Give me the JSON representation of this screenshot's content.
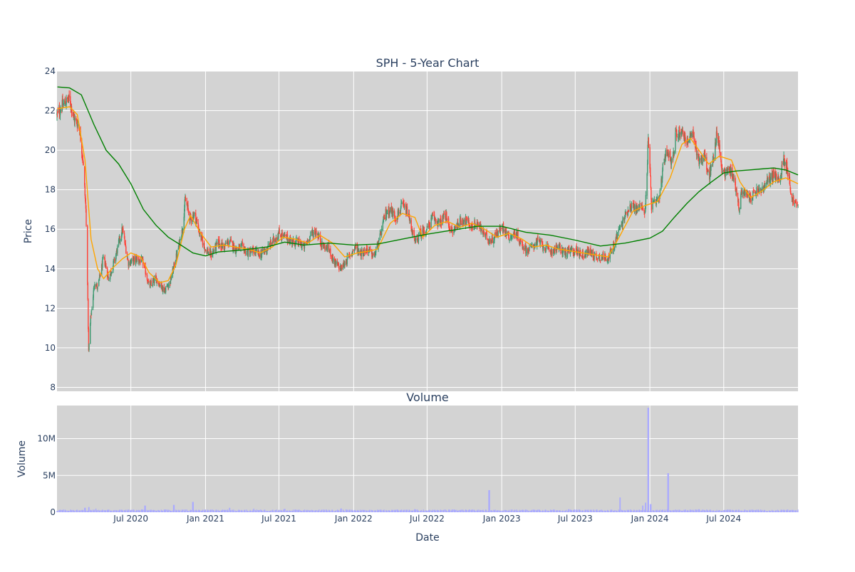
{
  "chart_data": [
    {
      "type": "candlestick",
      "title": "SPH - 5-Year Chart",
      "ylabel": "Price",
      "ylim": [
        7.8,
        24
      ],
      "yticks": [
        8,
        10,
        12,
        14,
        16,
        18,
        20,
        22,
        24
      ],
      "xlim": [
        "2020-01-01",
        "2024-12-31"
      ],
      "grid": true,
      "colors": {
        "increasing": "#3d9970",
        "decreasing": "#ff4136",
        "ma_short": "#ffa500",
        "ma_long": "#008000",
        "plot_bg": "#d3d3d3"
      },
      "price_anchors": [
        [
          "2020-01-02",
          21.8
        ],
        [
          "2020-01-15",
          22.3
        ],
        [
          "2020-02-01",
          22.6
        ],
        [
          "2020-02-12",
          21.6
        ],
        [
          "2020-02-25",
          21.2
        ],
        [
          "2020-03-05",
          19.5
        ],
        [
          "2020-03-12",
          17.0
        ],
        [
          "2020-03-16",
          13.5
        ],
        [
          "2020-03-19",
          9.8
        ],
        [
          "2020-03-24",
          11.5
        ],
        [
          "2020-04-03",
          13.4
        ],
        [
          "2020-04-10",
          13.0
        ],
        [
          "2020-04-25",
          14.6
        ],
        [
          "2020-05-07",
          13.5
        ],
        [
          "2020-05-20",
          14.3
        ],
        [
          "2020-06-05",
          15.6
        ],
        [
          "2020-06-10",
          16.0
        ],
        [
          "2020-06-25",
          14.3
        ],
        [
          "2020-07-15",
          14.5
        ],
        [
          "2020-08-01",
          14.3
        ],
        [
          "2020-08-15",
          13.1
        ],
        [
          "2020-09-01",
          13.5
        ],
        [
          "2020-09-22",
          12.9
        ],
        [
          "2020-10-05",
          13.3
        ],
        [
          "2020-10-20",
          14.5
        ],
        [
          "2020-11-05",
          16.0
        ],
        [
          "2020-11-12",
          17.5
        ],
        [
          "2020-11-25",
          16.5
        ],
        [
          "2020-12-05",
          16.8
        ],
        [
          "2020-12-20",
          15.6
        ],
        [
          "2021-01-01",
          15.0
        ],
        [
          "2021-01-15",
          14.7
        ],
        [
          "2021-02-01",
          15.3
        ],
        [
          "2021-02-15",
          15.1
        ],
        [
          "2021-03-01",
          15.4
        ],
        [
          "2021-03-15",
          15.0
        ],
        [
          "2021-04-01",
          15.1
        ],
        [
          "2021-04-15",
          14.8
        ],
        [
          "2021-05-01",
          14.9
        ],
        [
          "2021-05-15",
          14.7
        ],
        [
          "2021-06-01",
          15.0
        ],
        [
          "2021-06-20",
          15.5
        ],
        [
          "2021-07-01",
          15.8
        ],
        [
          "2021-07-15",
          15.6
        ],
        [
          "2021-08-01",
          15.4
        ],
        [
          "2021-08-20",
          15.3
        ],
        [
          "2021-09-01",
          15.1
        ],
        [
          "2021-09-20",
          15.8
        ],
        [
          "2021-10-01",
          15.9
        ],
        [
          "2021-10-15",
          15.2
        ],
        [
          "2021-11-01",
          15.0
        ],
        [
          "2021-11-15",
          14.3
        ],
        [
          "2021-12-01",
          14.0
        ],
        [
          "2021-12-20",
          14.6
        ],
        [
          "2022-01-05",
          15.1
        ],
        [
          "2022-01-20",
          14.8
        ],
        [
          "2022-02-05",
          15.0
        ],
        [
          "2022-02-20",
          14.6
        ],
        [
          "2022-03-05",
          15.4
        ],
        [
          "2022-03-20",
          16.8
        ],
        [
          "2022-04-01",
          17.0
        ],
        [
          "2022-04-15",
          16.6
        ],
        [
          "2022-05-01",
          17.2
        ],
        [
          "2022-05-15",
          16.8
        ],
        [
          "2022-06-01",
          15.3
        ],
        [
          "2022-06-15",
          15.8
        ],
        [
          "2022-07-01",
          16.0
        ],
        [
          "2022-07-15",
          16.6
        ],
        [
          "2022-08-01",
          16.3
        ],
        [
          "2022-08-15",
          16.7
        ],
        [
          "2022-09-01",
          15.8
        ],
        [
          "2022-09-15",
          16.3
        ],
        [
          "2022-10-01",
          16.5
        ],
        [
          "2022-10-20",
          16.1
        ],
        [
          "2022-11-01",
          16.3
        ],
        [
          "2022-11-20",
          15.7
        ],
        [
          "2022-12-05",
          15.4
        ],
        [
          "2022-12-20",
          15.8
        ],
        [
          "2023-01-05",
          16.1
        ],
        [
          "2023-01-20",
          15.6
        ],
        [
          "2023-02-05",
          15.8
        ],
        [
          "2023-02-20",
          15.2
        ],
        [
          "2023-03-05",
          14.9
        ],
        [
          "2023-03-20",
          15.2
        ],
        [
          "2023-04-01",
          15.4
        ],
        [
          "2023-04-20",
          15.0
        ],
        [
          "2023-05-05",
          14.9
        ],
        [
          "2023-05-20",
          15.1
        ],
        [
          "2023-06-05",
          14.8
        ],
        [
          "2023-06-20",
          14.9
        ],
        [
          "2023-07-05",
          14.9
        ],
        [
          "2023-07-20",
          14.7
        ],
        [
          "2023-08-05",
          14.9
        ],
        [
          "2023-08-20",
          14.6
        ],
        [
          "2023-09-05",
          14.6
        ],
        [
          "2023-09-20",
          14.6
        ],
        [
          "2023-10-01",
          14.9
        ],
        [
          "2023-10-15",
          15.9
        ],
        [
          "2023-10-25",
          16.3
        ],
        [
          "2023-11-05",
          16.9
        ],
        [
          "2023-11-15",
          17.2
        ],
        [
          "2023-12-01",
          17.0
        ],
        [
          "2023-12-12",
          17.3
        ],
        [
          "2023-12-20",
          16.7
        ],
        [
          "2023-12-28",
          20.5
        ],
        [
          "2024-01-05",
          17.2
        ],
        [
          "2024-01-15",
          17.3
        ],
        [
          "2024-01-25",
          17.6
        ],
        [
          "2024-02-05",
          19.6
        ],
        [
          "2024-02-15",
          20.0
        ],
        [
          "2024-02-25",
          19.3
        ],
        [
          "2024-03-05",
          20.8
        ],
        [
          "2024-03-20",
          21.0
        ],
        [
          "2024-04-01",
          20.4
        ],
        [
          "2024-04-15",
          20.8
        ],
        [
          "2024-05-01",
          19.5
        ],
        [
          "2024-05-15",
          19.7
        ],
        [
          "2024-05-25",
          18.6
        ],
        [
          "2024-06-05",
          19.5
        ],
        [
          "2024-06-15",
          21.0
        ],
        [
          "2024-06-25",
          19.2
        ],
        [
          "2024-07-05",
          18.8
        ],
        [
          "2024-07-15",
          19.1
        ],
        [
          "2024-07-25",
          18.6
        ],
        [
          "2024-08-01",
          18.0
        ],
        [
          "2024-08-08",
          17.0
        ],
        [
          "2024-08-15",
          18.0
        ],
        [
          "2024-08-25",
          17.7
        ],
        [
          "2024-09-05",
          17.6
        ],
        [
          "2024-09-20",
          17.9
        ],
        [
          "2024-10-05",
          18.0
        ],
        [
          "2024-10-20",
          18.5
        ],
        [
          "2024-11-01",
          18.8
        ],
        [
          "2024-11-15",
          18.4
        ],
        [
          "2024-11-25",
          19.6
        ],
        [
          "2024-12-05",
          19.1
        ],
        [
          "2024-12-15",
          17.6
        ],
        [
          "2024-12-31",
          17.1
        ]
      ],
      "series": [
        {
          "type": "line",
          "points": [
            [
              "2020-01-02",
              22.1
            ],
            [
              "2020-02-01",
              22.2
            ],
            [
              "2020-02-20",
              21.8
            ],
            [
              "2020-03-10",
              19.5
            ],
            [
              "2020-03-25",
              15.5
            ],
            [
              "2020-04-10",
              14.0
            ],
            [
              "2020-04-25",
              13.5
            ],
            [
              "2020-05-15",
              14.0
            ],
            [
              "2020-06-10",
              14.5
            ],
            [
              "2020-07-01",
              14.8
            ],
            [
              "2020-07-25",
              14.6
            ],
            [
              "2020-08-15",
              13.8
            ],
            [
              "2020-09-10",
              13.3
            ],
            [
              "2020-10-01",
              13.4
            ],
            [
              "2020-10-20",
              14.2
            ],
            [
              "2020-11-10",
              16.0
            ],
            [
              "2020-11-25",
              16.7
            ],
            [
              "2020-12-20",
              15.8
            ],
            [
              "2021-01-15",
              15.1
            ],
            [
              "2021-02-15",
              15.2
            ],
            [
              "2021-03-15",
              15.1
            ],
            [
              "2021-04-15",
              15.0
            ],
            [
              "2021-05-15",
              14.8
            ],
            [
              "2021-06-15",
              15.1
            ],
            [
              "2021-07-10",
              15.6
            ],
            [
              "2021-08-10",
              15.5
            ],
            [
              "2021-09-10",
              15.3
            ],
            [
              "2021-10-10",
              15.7
            ],
            [
              "2021-11-10",
              15.3
            ],
            [
              "2021-12-10",
              14.6
            ],
            [
              "2022-01-10",
              14.8
            ],
            [
              "2022-02-10",
              14.9
            ],
            [
              "2022-03-01",
              15.0
            ],
            [
              "2022-04-01",
              16.3
            ],
            [
              "2022-05-01",
              16.8
            ],
            [
              "2022-06-01",
              16.6
            ],
            [
              "2022-06-20",
              15.6
            ],
            [
              "2022-07-20",
              16.2
            ],
            [
              "2022-08-20",
              16.4
            ],
            [
              "2022-09-20",
              16.1
            ],
            [
              "2022-10-20",
              16.3
            ],
            [
              "2022-11-20",
              16.0
            ],
            [
              "2022-12-20",
              15.6
            ],
            [
              "2023-01-20",
              15.8
            ],
            [
              "2023-02-20",
              15.5
            ],
            [
              "2023-03-20",
              15.1
            ],
            [
              "2023-04-20",
              15.2
            ],
            [
              "2023-05-20",
              15.0
            ],
            [
              "2023-06-20",
              14.9
            ],
            [
              "2023-07-20",
              14.8
            ],
            [
              "2023-08-20",
              14.7
            ],
            [
              "2023-09-20",
              14.6
            ],
            [
              "2023-10-20",
              15.7
            ],
            [
              "2023-11-20",
              16.9
            ],
            [
              "2023-12-20",
              17.2
            ],
            [
              "2024-01-20",
              17.4
            ],
            [
              "2024-02-20",
              18.6
            ],
            [
              "2024-03-20",
              20.3
            ],
            [
              "2024-04-10",
              20.6
            ],
            [
              "2024-05-01",
              20.0
            ],
            [
              "2024-05-25",
              19.3
            ],
            [
              "2024-06-20",
              19.7
            ],
            [
              "2024-07-20",
              19.5
            ],
            [
              "2024-08-10",
              18.4
            ],
            [
              "2024-09-05",
              17.6
            ],
            [
              "2024-10-01",
              17.9
            ],
            [
              "2024-11-01",
              18.4
            ],
            [
              "2024-12-01",
              18.6
            ],
            [
              "2024-12-31",
              18.3
            ]
          ]
        },
        {
          "type": "line",
          "points": [
            [
              "2020-01-02",
              23.2
            ],
            [
              "2020-02-01",
              23.15
            ],
            [
              "2020-03-01",
              22.8
            ],
            [
              "2020-04-01",
              21.3
            ],
            [
              "2020-05-01",
              20.0
            ],
            [
              "2020-06-01",
              19.3
            ],
            [
              "2020-07-01",
              18.3
            ],
            [
              "2020-08-01",
              17.0
            ],
            [
              "2020-09-01",
              16.2
            ],
            [
              "2020-10-01",
              15.6
            ],
            [
              "2020-11-01",
              15.2
            ],
            [
              "2020-12-01",
              14.8
            ],
            [
              "2021-01-01",
              14.65
            ],
            [
              "2021-02-01",
              14.85
            ],
            [
              "2021-04-01",
              14.95
            ],
            [
              "2021-06-01",
              15.1
            ],
            [
              "2021-07-15",
              15.35
            ],
            [
              "2021-09-01",
              15.2
            ],
            [
              "2021-11-01",
              15.3
            ],
            [
              "2022-01-01",
              15.2
            ],
            [
              "2022-03-01",
              15.25
            ],
            [
              "2022-05-01",
              15.5
            ],
            [
              "2022-07-01",
              15.75
            ],
            [
              "2022-09-01",
              15.95
            ],
            [
              "2022-11-01",
              16.15
            ],
            [
              "2023-01-01",
              16.15
            ],
            [
              "2023-03-01",
              15.85
            ],
            [
              "2023-05-01",
              15.7
            ],
            [
              "2023-07-01",
              15.45
            ],
            [
              "2023-09-01",
              15.15
            ],
            [
              "2023-11-01",
              15.3
            ],
            [
              "2024-01-01",
              15.55
            ],
            [
              "2024-02-01",
              15.9
            ],
            [
              "2024-03-01",
              16.6
            ],
            [
              "2024-04-01",
              17.3
            ],
            [
              "2024-05-01",
              17.9
            ],
            [
              "2024-06-01",
              18.4
            ],
            [
              "2024-07-01",
              18.85
            ],
            [
              "2024-08-01",
              18.95
            ],
            [
              "2024-09-01",
              19.0
            ],
            [
              "2024-10-01",
              19.05
            ],
            [
              "2024-11-01",
              19.1
            ],
            [
              "2024-12-01",
              19.0
            ],
            [
              "2024-12-31",
              18.75
            ]
          ]
        }
      ]
    },
    {
      "type": "bar",
      "title": "Volume",
      "xlabel": "Date",
      "ylabel": "Volume",
      "ylim": [
        0,
        14500000
      ],
      "yticks": [
        0,
        5000000,
        10000000
      ],
      "ytick_labels": [
        "0",
        "5M",
        "10M"
      ],
      "xticks": [
        "2020-07-01",
        "2021-01-01",
        "2021-07-01",
        "2022-01-01",
        "2022-07-01",
        "2023-01-01",
        "2023-07-01",
        "2024-01-01",
        "2024-07-01"
      ],
      "xtick_labels": [
        "Jul 2020",
        "Jan 2021",
        "Jul 2021",
        "Jan 2022",
        "Jul 2022",
        "Jan 2023",
        "Jul 2023",
        "Jan 2024",
        "Jul 2024"
      ],
      "colors": {
        "bar": "#aaaaff"
      },
      "baseline": 250000,
      "spikes": [
        [
          "2020-03-10",
          600000
        ],
        [
          "2020-03-20",
          700000
        ],
        [
          "2020-04-05",
          500000
        ],
        [
          "2020-08-05",
          900000
        ],
        [
          "2020-10-15",
          1000000
        ],
        [
          "2020-12-01",
          1400000
        ],
        [
          "2021-03-01",
          600000
        ],
        [
          "2021-05-01",
          500000
        ],
        [
          "2021-07-15",
          450000
        ],
        [
          "2021-12-01",
          500000
        ],
        [
          "2022-06-01",
          400000
        ],
        [
          "2022-12-01",
          3000000
        ],
        [
          "2023-06-15",
          400000
        ],
        [
          "2023-10-20",
          2000000
        ],
        [
          "2023-12-15",
          900000
        ],
        [
          "2023-12-22",
          1300000
        ],
        [
          "2023-12-28",
          14200000
        ],
        [
          "2024-01-03",
          1100000
        ],
        [
          "2024-02-15",
          5300000
        ],
        [
          "2024-05-01",
          400000
        ],
        [
          "2024-09-15",
          300000
        ]
      ]
    }
  ]
}
